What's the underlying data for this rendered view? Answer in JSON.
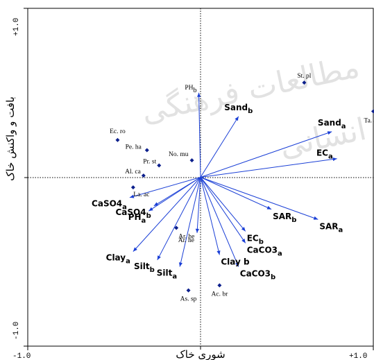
{
  "chart_data": {
    "type": "scatter",
    "subtype": "ordination-biplot",
    "xlabel": "شوری خاک",
    "ylabel": "بافت و واکنش خاک",
    "xlim": [
      -1.0,
      1.0
    ],
    "ylim": [
      -1.0,
      1.0
    ],
    "x_tick_labels": [
      "-1.0",
      "+1.0"
    ],
    "y_tick_labels": [
      "-1.0",
      "+1.0"
    ],
    "grid": false,
    "legend": "none",
    "arrow_color": "#1a3fd6",
    "point_color": "#0c1f8c",
    "env_vectors": [
      {
        "name": "PH",
        "sub": "b",
        "x": -0.01,
        "y": 0.5
      },
      {
        "name": "Sand",
        "sub": "b",
        "x": 0.22,
        "y": 0.36
      },
      {
        "name": "Sand",
        "sub": "a",
        "x": 0.76,
        "y": 0.27
      },
      {
        "name": "EC",
        "sub": "a",
        "x": 0.79,
        "y": 0.11
      },
      {
        "name": "CaSO4",
        "sub": "a",
        "x": -0.41,
        "y": -0.12
      },
      {
        "name": "PH",
        "sub": "a",
        "x": -0.3,
        "y": -0.2
      },
      {
        "name": "CaSO4",
        "sub": "b",
        "x": -0.27,
        "y": -0.17
      },
      {
        "name": "SAR",
        "sub": "b",
        "x": 0.41,
        "y": -0.19
      },
      {
        "name": "SAR",
        "sub": "a",
        "x": 0.68,
        "y": -0.25
      },
      {
        "name": "EC",
        "sub": "b",
        "x": 0.26,
        "y": -0.32
      },
      {
        "name": "CaCO3",
        "sub": "a",
        "x": 0.26,
        "y": -0.39
      },
      {
        "name": "CaCO3",
        "sub": "b",
        "x": 0.22,
        "y": -0.53
      },
      {
        "name": "Clay",
        "sub": "",
        "label": "Clay b",
        "x": 0.11,
        "y": -0.46
      },
      {
        "name": "Clay",
        "sub": "a",
        "x": -0.39,
        "y": -0.44
      },
      {
        "name": "Silt",
        "sub": "b",
        "x": -0.25,
        "y": -0.49
      },
      {
        "name": "Silt",
        "sub": "a",
        "x": -0.12,
        "y": -0.53
      },
      {
        "name": "Ar. he",
        "sub": "",
        "x": -0.02,
        "y": -0.33
      }
    ],
    "species": [
      {
        "label": "St. pl",
        "x": 0.6,
        "y": 0.56
      },
      {
        "label": "Ta. ap",
        "x": 1.0,
        "y": 0.39
      },
      {
        "label": "Ec. ro",
        "x": -0.48,
        "y": 0.22
      },
      {
        "label": "Pe. ha",
        "x": -0.31,
        "y": 0.16
      },
      {
        "label": "No. mu",
        "x": -0.05,
        "y": 0.1
      },
      {
        "label": "Pr. st",
        "x": -0.24,
        "y": 0.07
      },
      {
        "label": "Al. ca",
        "x": -0.33,
        "y": 0.01
      },
      {
        "label": "La. ac",
        "x": -0.39,
        "y": -0.06
      },
      {
        "label": "Ar. he",
        "x": -0.14,
        "y": -0.3
      },
      {
        "label": "Ac. br",
        "x": 0.11,
        "y": -0.64
      },
      {
        "label": "As. sp",
        "x": -0.07,
        "y": -0.67
      }
    ]
  },
  "watermark": {
    "lines": [
      "مطالعات فرهنگی",
      "انسانی"
    ]
  }
}
